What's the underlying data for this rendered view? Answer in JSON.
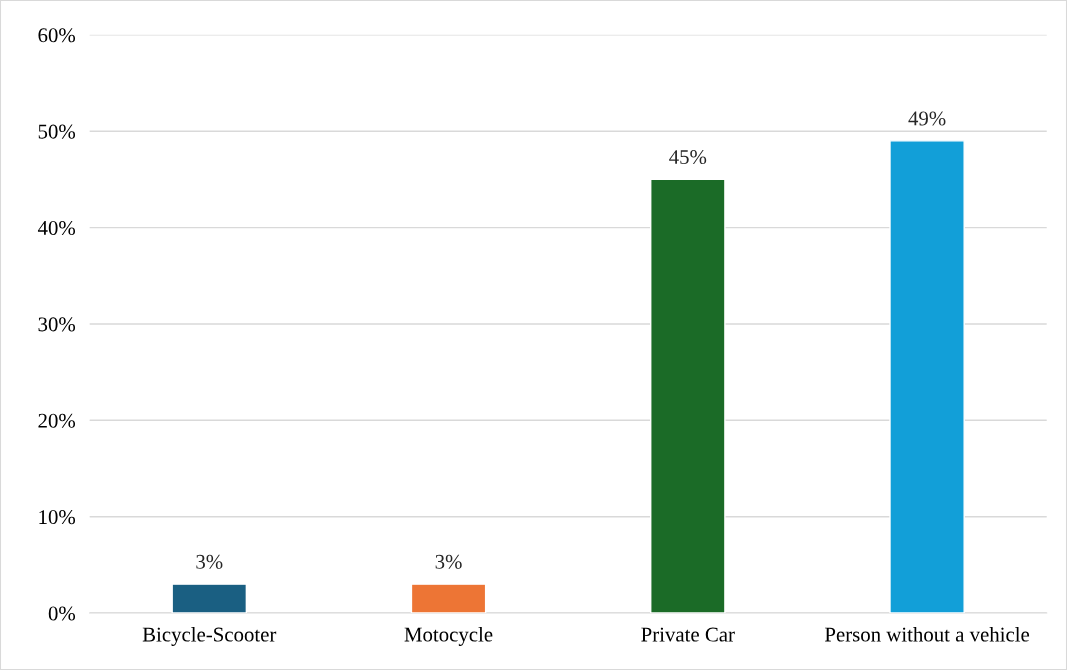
{
  "chart_data": {
    "type": "bar",
    "categories": [
      "Bicycle-Scooter",
      "Motocycle",
      "Private Car",
      "Person without a vehicle"
    ],
    "values": [
      3,
      3,
      45,
      49
    ],
    "colors": [
      "#1a5f82",
      "#ed7535",
      "#1b6b27",
      "#129fd8"
    ],
    "value_labels": [
      "3%",
      "3%",
      "45%",
      "49%"
    ],
    "ylim": [
      0,
      60
    ],
    "yticks": [
      {
        "value": 0,
        "label": "0%"
      },
      {
        "value": 10,
        "label": "10%"
      },
      {
        "value": 20,
        "label": "20%"
      },
      {
        "value": 30,
        "label": "30%"
      },
      {
        "value": 40,
        "label": "40%"
      },
      {
        "value": 50,
        "label": "50%"
      },
      {
        "value": 60,
        "label": "60%"
      }
    ],
    "grid": "y",
    "legend": false
  }
}
